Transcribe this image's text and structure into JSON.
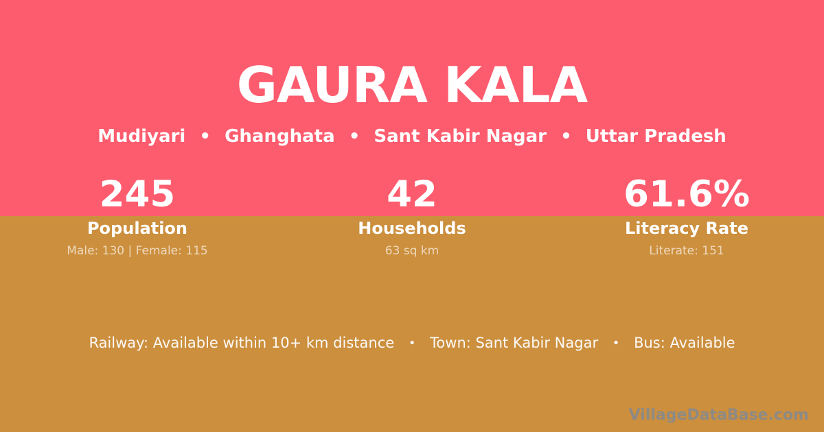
{
  "theme": {
    "top_background": "#fd5c6e",
    "bottom_background": "#cc8f3e",
    "primary_text": "#ffffff",
    "muted_text": "rgba(255,255,255,0.65)",
    "watermark_text": "#8a8a8a"
  },
  "header": {
    "title": "GAURA KALA",
    "location": {
      "separator": "•",
      "parts": [
        "Mudiyari",
        "Ghanghata",
        "Sant Kabir Nagar",
        "Uttar Pradesh"
      ]
    }
  },
  "stats": [
    {
      "value": "245",
      "label": "Population",
      "detail": "Male: 130 | Female: 115"
    },
    {
      "value": "42",
      "label": "Households",
      "detail": "63 sq km"
    },
    {
      "value": "61.6%",
      "label": "Literacy Rate",
      "detail": "Literate: 151"
    }
  ],
  "amenities": {
    "separator": "•",
    "items": [
      "Railway: Available within 10+ km distance",
      "Town: Sant Kabir Nagar",
      "Bus: Available"
    ]
  },
  "watermark": "VillageDataBase.com"
}
